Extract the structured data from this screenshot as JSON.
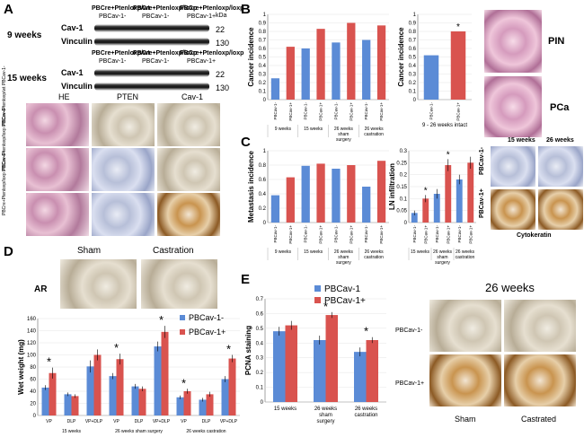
{
  "panels": {
    "a": "A",
    "b": "B",
    "c": "C",
    "d": "D",
    "e": "E"
  },
  "panelA": {
    "hdr1a": "PBCre",
    "hdr1b": "Pten",
    "hdr1c": "PBCav-1-",
    "genotypes_top": [
      "PBCre+Ptenloxp/wt",
      "PBCre+Ptenloxp/loxp",
      "PBCre+Ptenloxp/loxp"
    ],
    "cav_labels": [
      "PBCav-1-",
      "PBCav-1-",
      "PBCav-1+"
    ],
    "time1": "9 weeks",
    "time2": "15 weeks",
    "bands": [
      "Cav-1",
      "Vinculin"
    ],
    "kda": "kDa",
    "kda_values": [
      "22",
      "130"
    ],
    "ihc_cols": [
      "HE",
      "PTEN",
      "Cav-1"
    ],
    "ihc_rows": [
      "PBCre+Ptenloxp/wt PBCav-1-",
      "PBCre+Ptenloxp/loxp PBCav-1-",
      "PBCre+Ptenloxp/loxp PBCav-1+"
    ]
  },
  "panelB": {
    "pin": "PIN",
    "pca": "PCa"
  },
  "panelC": {
    "cytokeratin": "Cytokeratin",
    "weeks15": "15 weeks",
    "weeks26": "26 weeks",
    "rows": [
      "PBCav-1-",
      "PBCav-1+"
    ]
  },
  "panelD": {
    "sham": "Sham",
    "castration": "Castration",
    "ar": "AR"
  },
  "panelE": {
    "title": "26 weeks",
    "rows": [
      "PBCav-1-",
      "PBCav-1+"
    ],
    "cols": [
      "Sham",
      "Castrated"
    ]
  },
  "colors": {
    "blue": "#5b8bd6",
    "red": "#d9534f"
  },
  "chart_data": [
    {
      "id": "b_left",
      "type": "bar",
      "ylabel": "Cancer incidence",
      "ylim": [
        0,
        1
      ],
      "yticks": [
        0,
        0.1,
        0.2,
        0.3,
        0.4,
        0.5,
        0.6,
        0.7,
        0.8,
        0.9,
        1
      ],
      "categories": [
        "PBCav-1-",
        "PBCav-1+",
        "PBCav-1-",
        "PBCav-1+",
        "PBCav-1-",
        "PBCav-1+",
        "PBCav-1-",
        "PBCav-1+"
      ],
      "groups": [
        "9 weeks",
        "15 weeks",
        "26 weeks sham surgery",
        "26 weeks castration"
      ],
      "values": [
        0.25,
        0.62,
        0.6,
        0.83,
        0.67,
        0.9,
        0.7,
        0.87
      ]
    },
    {
      "id": "b_mid",
      "type": "bar",
      "ylabel": "Cancer incidence",
      "ylim": [
        0,
        1
      ],
      "yticks": [
        0,
        0.1,
        0.2,
        0.3,
        0.4,
        0.5,
        0.6,
        0.7,
        0.8,
        0.9,
        1
      ],
      "categories": [
        "PBCav-1-",
        "PBCav-1+"
      ],
      "group": "9 - 26 weeks intact",
      "values": [
        0.52,
        0.8
      ],
      "sig": [
        "",
        "*"
      ]
    },
    {
      "id": "c_left",
      "type": "bar",
      "ylabel": "Metastasis incidence",
      "ylim": [
        0,
        1
      ],
      "yticks": [
        0,
        0.2,
        0.4,
        0.6,
        0.8,
        1
      ],
      "categories": [
        "PBCav-1-",
        "PBCav-1+",
        "PBCav-1-",
        "PBCav-1+",
        "PBCav-1-",
        "PBCav-1+",
        "PBCav-1-",
        "PBCav-1+"
      ],
      "groups": [
        "9 weeks",
        "15 weeks",
        "26 weeks sham surgery",
        "26 weeks castration"
      ],
      "values": [
        0.38,
        0.63,
        0.79,
        0.82,
        0.75,
        0.8,
        0.5,
        0.86
      ]
    },
    {
      "id": "c_mid",
      "type": "bar",
      "ylabel": "LN infiltration",
      "ylim": [
        0,
        0.3
      ],
      "yticks": [
        0,
        0.05,
        0.1,
        0.15,
        0.2,
        0.25,
        0.3
      ],
      "categories": [
        "PBCav-1-",
        "PBCav-1+",
        "PBCav-1-",
        "PBCav-1+",
        "PBCav-1-",
        "PBCav-1+"
      ],
      "groups": [
        "15 weeks",
        "26 weeks sham surgery",
        "26 weeks castration"
      ],
      "values": [
        0.04,
        0.1,
        0.12,
        0.24,
        0.18,
        0.25
      ],
      "errors": [
        0.01,
        0.015,
        0.02,
        0.025,
        0.02,
        0.025
      ],
      "sig": [
        "",
        "*",
        "",
        "*",
        "",
        ""
      ]
    },
    {
      "id": "d_chart",
      "type": "bar",
      "ylabel": "Wet weight (mg)",
      "ylim": [
        0,
        160
      ],
      "yticks": [
        0,
        20,
        40,
        60,
        80,
        100,
        120,
        140,
        160
      ],
      "categories": [
        "VP",
        "DLP",
        "VP+DLP",
        "VP",
        "DLP",
        "VP+DLP",
        "VP",
        "DLP",
        "VP+DLP"
      ],
      "groups": [
        "15 weeks",
        "26 weeks sham surgery",
        "26 weeks castration"
      ],
      "series": [
        {
          "name": "PBCav-1-",
          "values": [
            46,
            35,
            81,
            65,
            48,
            114,
            30,
            26,
            60
          ],
          "errors": [
            4,
            3,
            10,
            5,
            4,
            8,
            3,
            3,
            5
          ]
        },
        {
          "name": "PBCav-1+",
          "values": [
            70,
            32,
            100,
            93,
            44,
            138,
            40,
            35,
            94
          ],
          "errors": [
            9,
            3,
            9,
            9,
            4,
            10,
            4,
            4,
            6
          ]
        }
      ],
      "sig": [
        "*",
        "",
        "",
        "*",
        "",
        "*",
        "*",
        "",
        "*"
      ]
    },
    {
      "id": "e_chart",
      "type": "bar",
      "ylabel": "PCNA staining",
      "ylim": [
        0,
        0.7
      ],
      "yticks": [
        0,
        0.1,
        0.2,
        0.3,
        0.4,
        0.5,
        0.6,
        0.7
      ],
      "categories": [
        "15 weeks",
        "26 weeks sham surgery",
        "26 weeks castration"
      ],
      "series": [
        {
          "name": "PBCav-1",
          "values": [
            0.48,
            0.42,
            0.34
          ],
          "errors": [
            0.03,
            0.03,
            0.03
          ]
        },
        {
          "name": "PBCav-1+",
          "values": [
            0.52,
            0.59,
            0.42
          ],
          "errors": [
            0.03,
            0.02,
            0.02
          ]
        }
      ],
      "sig": [
        "",
        "*",
        "*"
      ]
    }
  ]
}
